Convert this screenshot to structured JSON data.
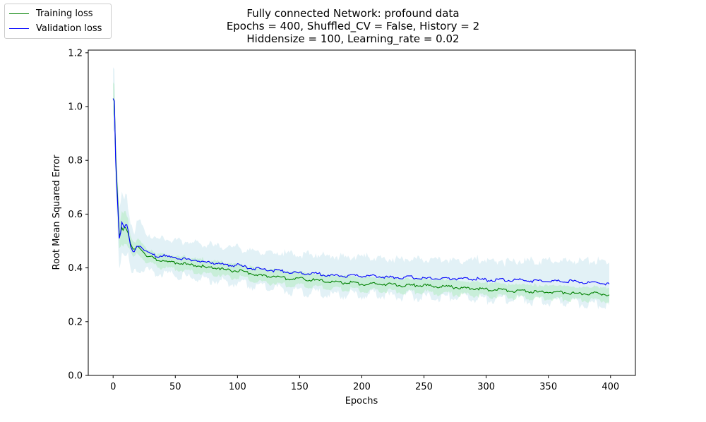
{
  "title_lines": [
    "Fully connected Network: profound data",
    "Epochs = 400, Shuffled_CV = False, History = 2",
    "Hiddensize = 100, Learning_rate = 0.02"
  ],
  "legend": {
    "training": "Training loss",
    "validation": "Validation loss"
  },
  "colors": {
    "training": "#008000",
    "validation": "#0000ff",
    "training_band": "#b7ecc6",
    "validation_band": "#add8e6"
  },
  "chart_data": {
    "type": "line",
    "xlabel": "Epochs",
    "ylabel": "Root Mean Squared Error",
    "xlim": [
      -20,
      420
    ],
    "ylim": [
      0,
      1.21
    ],
    "xticks": [
      0,
      50,
      100,
      150,
      200,
      250,
      300,
      350,
      400
    ],
    "yticks": [
      0.0,
      0.2,
      0.4,
      0.6,
      0.8,
      1.0,
      1.2
    ],
    "ytick_labels": [
      "0.0",
      "0.2",
      "0.4",
      "0.6",
      "0.8",
      "1.0",
      "1.2"
    ],
    "grid": false,
    "legend_position": "top-left (outside plot)",
    "series": [
      {
        "name": "Training loss",
        "x": [
          0,
          1,
          2,
          3,
          4,
          5,
          6,
          7,
          8,
          9,
          10,
          11,
          12,
          13,
          14,
          15,
          16,
          17,
          18,
          19,
          20,
          22,
          24,
          26,
          28,
          30,
          35,
          40,
          45,
          50,
          55,
          60,
          65,
          70,
          75,
          80,
          85,
          90,
          95,
          100,
          110,
          120,
          130,
          140,
          150,
          160,
          170,
          180,
          190,
          200,
          210,
          220,
          230,
          240,
          250,
          260,
          270,
          280,
          290,
          300,
          310,
          320,
          330,
          340,
          350,
          360,
          370,
          380,
          390,
          399
        ],
        "y": [
          1.03,
          1.02,
          0.82,
          0.72,
          0.62,
          0.52,
          0.53,
          0.55,
          0.54,
          0.55,
          0.55,
          0.54,
          0.53,
          0.51,
          0.49,
          0.48,
          0.47,
          0.47,
          0.47,
          0.48,
          0.48,
          0.47,
          0.46,
          0.45,
          0.44,
          0.44,
          0.43,
          0.43,
          0.42,
          0.42,
          0.42,
          0.41,
          0.41,
          0.41,
          0.4,
          0.4,
          0.4,
          0.39,
          0.39,
          0.39,
          0.38,
          0.37,
          0.37,
          0.36,
          0.36,
          0.355,
          0.35,
          0.345,
          0.345,
          0.34,
          0.34,
          0.34,
          0.335,
          0.335,
          0.335,
          0.33,
          0.33,
          0.325,
          0.325,
          0.32,
          0.32,
          0.315,
          0.315,
          0.31,
          0.31,
          0.31,
          0.305,
          0.305,
          0.305,
          0.3
        ],
        "band": [
          0.07,
          0.07,
          0.06,
          0.06,
          0.06,
          0.05,
          0.05,
          0.05,
          0.05,
          0.05,
          0.05,
          0.05,
          0.05,
          0.04,
          0.03,
          0.03,
          0.03,
          0.03,
          0.03,
          0.03,
          0.03,
          0.025,
          0.025,
          0.025,
          0.025,
          0.025,
          0.025,
          0.025,
          0.025,
          0.025,
          0.025,
          0.025,
          0.025,
          0.025,
          0.025,
          0.025,
          0.025,
          0.025,
          0.025,
          0.025,
          0.025,
          0.025,
          0.025,
          0.025,
          0.025,
          0.025,
          0.025,
          0.025,
          0.025,
          0.025,
          0.025,
          0.025,
          0.025,
          0.025,
          0.025,
          0.025,
          0.025,
          0.025,
          0.025,
          0.025,
          0.025,
          0.025,
          0.025,
          0.025,
          0.025,
          0.025,
          0.025,
          0.025,
          0.025,
          0.025
        ]
      },
      {
        "name": "Validation loss",
        "x": [
          0,
          1,
          2,
          3,
          4,
          5,
          6,
          7,
          8,
          9,
          10,
          11,
          12,
          13,
          14,
          15,
          16,
          17,
          18,
          19,
          20,
          22,
          24,
          26,
          28,
          30,
          35,
          40,
          45,
          50,
          55,
          60,
          65,
          70,
          75,
          80,
          85,
          90,
          95,
          100,
          110,
          120,
          130,
          140,
          150,
          160,
          170,
          180,
          190,
          200,
          210,
          220,
          230,
          240,
          250,
          260,
          270,
          280,
          290,
          300,
          310,
          320,
          330,
          340,
          350,
          360,
          370,
          380,
          390,
          399
        ],
        "y": [
          1.03,
          1.02,
          0.8,
          0.7,
          0.6,
          0.51,
          0.53,
          0.57,
          0.56,
          0.55,
          0.56,
          0.56,
          0.54,
          0.51,
          0.48,
          0.47,
          0.46,
          0.46,
          0.47,
          0.48,
          0.48,
          0.48,
          0.47,
          0.46,
          0.455,
          0.45,
          0.445,
          0.445,
          0.44,
          0.44,
          0.435,
          0.43,
          0.43,
          0.425,
          0.42,
          0.42,
          0.415,
          0.41,
          0.41,
          0.41,
          0.4,
          0.395,
          0.39,
          0.385,
          0.38,
          0.38,
          0.375,
          0.37,
          0.37,
          0.37,
          0.37,
          0.365,
          0.365,
          0.365,
          0.36,
          0.36,
          0.36,
          0.36,
          0.36,
          0.355,
          0.355,
          0.355,
          0.355,
          0.35,
          0.35,
          0.35,
          0.35,
          0.345,
          0.345,
          0.34
        ],
        "band": [
          0.12,
          0.12,
          0.12,
          0.11,
          0.1,
          0.09,
          0.1,
          0.11,
          0.1,
          0.1,
          0.1,
          0.1,
          0.1,
          0.09,
          0.09,
          0.09,
          0.08,
          0.08,
          0.08,
          0.08,
          0.08,
          0.08,
          0.075,
          0.07,
          0.07,
          0.07,
          0.065,
          0.065,
          0.065,
          0.065,
          0.065,
          0.065,
          0.065,
          0.065,
          0.065,
          0.065,
          0.065,
          0.065,
          0.065,
          0.065,
          0.065,
          0.065,
          0.065,
          0.07,
          0.07,
          0.07,
          0.07,
          0.07,
          0.07,
          0.07,
          0.07,
          0.07,
          0.07,
          0.07,
          0.07,
          0.07,
          0.07,
          0.07,
          0.07,
          0.07,
          0.07,
          0.07,
          0.07,
          0.075,
          0.075,
          0.075,
          0.075,
          0.08,
          0.08,
          0.08
        ]
      }
    ]
  }
}
